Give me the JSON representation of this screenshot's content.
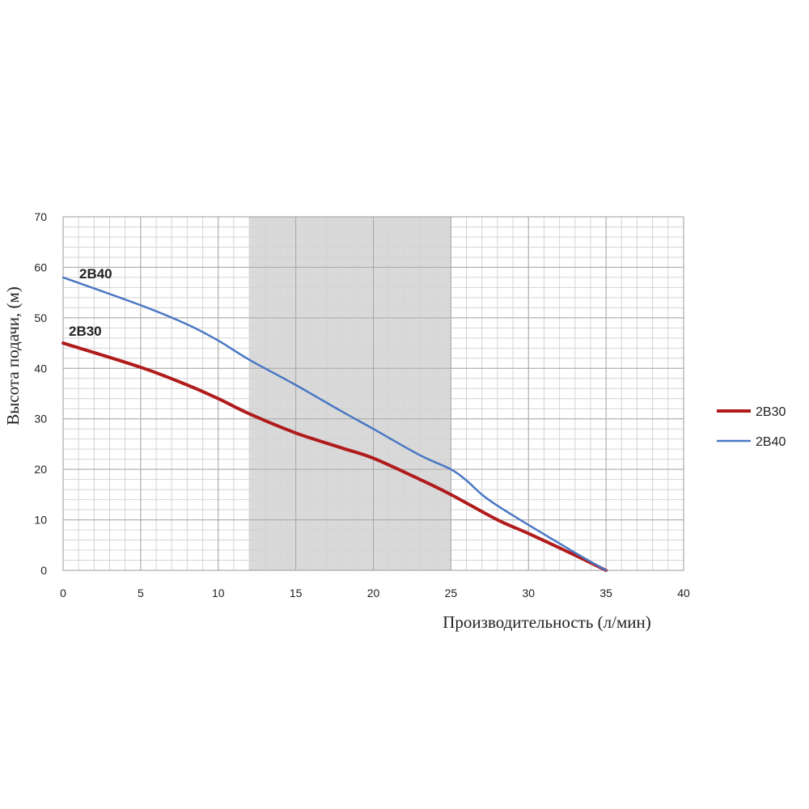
{
  "chart_data": {
    "type": "line",
    "xlabel": "Производительность (л/мин)",
    "ylabel": "Высота подачи, (м)",
    "xlim": [
      0,
      40
    ],
    "ylim": [
      0,
      70
    ],
    "xticks": [
      0,
      5,
      10,
      15,
      20,
      25,
      30,
      35,
      40
    ],
    "yticks": [
      0,
      10,
      20,
      30,
      40,
      50,
      60,
      70
    ],
    "grid": true,
    "legend": "right",
    "shaded_range": [
      12,
      25
    ],
    "series": [
      {
        "name": "2B30",
        "color": "#b01c1c",
        "x": [
          0,
          5,
          8,
          10,
          12,
          15,
          18,
          20,
          23,
          25,
          28,
          30,
          33,
          35
        ],
        "y": [
          45,
          40.2,
          36.7,
          34,
          31,
          27.2,
          24.2,
          22.2,
          18,
          15,
          10,
          7.3,
          3,
          0
        ]
      },
      {
        "name": "2B40",
        "color": "#4a78c4",
        "x": [
          0,
          5,
          8,
          10,
          12,
          15,
          18,
          20,
          23,
          25,
          26,
          27,
          28,
          30,
          33,
          35
        ],
        "y": [
          58,
          52.5,
          48.7,
          45.5,
          41.7,
          36.7,
          31.4,
          28,
          22.8,
          20,
          17.8,
          15,
          12.8,
          9,
          3.5,
          0
        ]
      }
    ],
    "annotations": [
      "2B40",
      "2B30"
    ]
  }
}
